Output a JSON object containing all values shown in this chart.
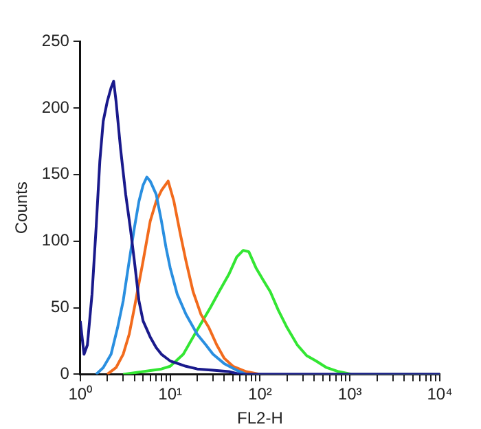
{
  "chart_data": {
    "type": "line",
    "xlabel": "FL2-H",
    "ylabel": "Counts",
    "log": "x",
    "xlim": [
      1,
      10000
    ],
    "ylim": [
      0,
      250
    ],
    "xticks": [
      {
        "value": 1,
        "label": "10⁰"
      },
      {
        "value": 2,
        "label": null
      },
      {
        "value": 3,
        "label": null
      },
      {
        "value": 4,
        "label": null
      },
      {
        "value": 5,
        "label": null
      },
      {
        "value": 6,
        "label": null
      },
      {
        "value": 7,
        "label": null
      },
      {
        "value": 8,
        "label": null
      },
      {
        "value": 9,
        "label": null
      },
      {
        "value": 10,
        "label": "10¹"
      },
      {
        "value": 20,
        "label": null
      },
      {
        "value": 30,
        "label": null
      },
      {
        "value": 40,
        "label": null
      },
      {
        "value": 50,
        "label": null
      },
      {
        "value": 60,
        "label": null
      },
      {
        "value": 70,
        "label": null
      },
      {
        "value": 80,
        "label": null
      },
      {
        "value": 90,
        "label": null
      },
      {
        "value": 100,
        "label": "10²"
      },
      {
        "value": 200,
        "label": null
      },
      {
        "value": 300,
        "label": null
      },
      {
        "value": 400,
        "label": null
      },
      {
        "value": 500,
        "label": null
      },
      {
        "value": 600,
        "label": null
      },
      {
        "value": 700,
        "label": null
      },
      {
        "value": 800,
        "label": null
      },
      {
        "value": 900,
        "label": null
      },
      {
        "value": 1000,
        "label": "10³"
      },
      {
        "value": 2000,
        "label": null
      },
      {
        "value": 3000,
        "label": null
      },
      {
        "value": 4000,
        "label": null
      },
      {
        "value": 5000,
        "label": null
      },
      {
        "value": 6000,
        "label": null
      },
      {
        "value": 7000,
        "label": null
      },
      {
        "value": 8000,
        "label": null
      },
      {
        "value": 9000,
        "label": null
      },
      {
        "value": 10000,
        "label": "10⁴"
      }
    ],
    "yticks": [
      0,
      50,
      100,
      150,
      200,
      250
    ],
    "grid": false,
    "legend": false,
    "marker": "none",
    "line_style": "solid",
    "series": [
      {
        "color": "#1a1a8c",
        "x": [
          1,
          1.1,
          1.2,
          1.35,
          1.5,
          1.65,
          1.8,
          2,
          2.2,
          2.35,
          2.5,
          2.8,
          3.2,
          3.6,
          4,
          4.5,
          5,
          6,
          7,
          8,
          10,
          15,
          20,
          30,
          45,
          60,
          100,
          10000
        ],
        "values": [
          40,
          15,
          22,
          60,
          110,
          160,
          190,
          205,
          215,
          220,
          205,
          170,
          135,
          110,
          85,
          55,
          40,
          28,
          20,
          15,
          10,
          6,
          4,
          3,
          2,
          0,
          0,
          0
        ]
      },
      {
        "color": "#2a8fe0",
        "x": [
          1.5,
          1.8,
          2.2,
          2.6,
          3,
          3.5,
          4,
          4.5,
          5,
          5.5,
          6,
          7,
          8,
          9,
          10,
          12,
          15,
          20,
          25,
          30,
          40,
          55,
          70,
          10000
        ],
        "values": [
          0,
          5,
          15,
          35,
          55,
          85,
          110,
          130,
          142,
          148,
          145,
          135,
          115,
          95,
          80,
          60,
          45,
          30,
          22,
          15,
          8,
          3,
          0,
          0
        ]
      },
      {
        "color": "#f26b1d",
        "x": [
          2,
          2.5,
          3,
          3.5,
          4,
          5,
          6,
          7,
          8,
          9.5,
          11,
          13,
          15,
          18,
          22,
          27,
          33,
          40,
          50,
          70,
          100,
          10000
        ],
        "values": [
          0,
          5,
          15,
          30,
          50,
          85,
          115,
          130,
          138,
          145,
          130,
          105,
          85,
          62,
          45,
          35,
          22,
          12,
          6,
          2,
          0,
          0
        ]
      },
      {
        "color": "#33e633",
        "x": [
          3,
          5,
          8,
          10,
          14,
          18,
          22,
          28,
          35,
          45,
          55,
          65,
          75,
          90,
          110,
          130,
          160,
          200,
          260,
          330,
          420,
          550,
          750,
          1050,
          10000
        ],
        "values": [
          0,
          2,
          4,
          6,
          15,
          28,
          38,
          50,
          62,
          75,
          88,
          93,
          92,
          80,
          70,
          62,
          48,
          35,
          22,
          14,
          10,
          5,
          2,
          0,
          0
        ]
      }
    ]
  }
}
